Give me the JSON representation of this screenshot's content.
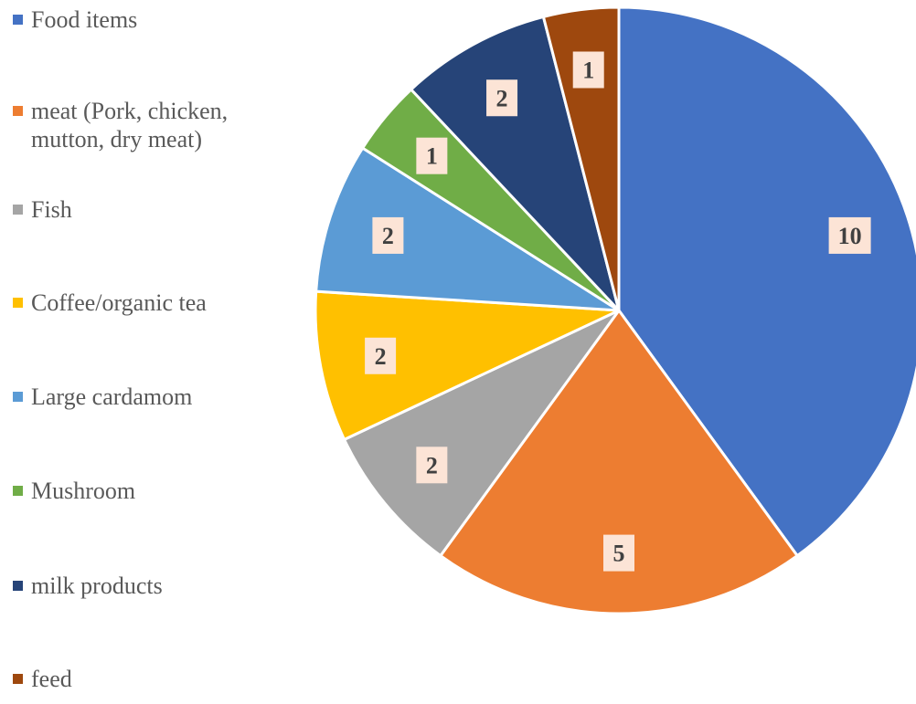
{
  "chart_data": {
    "type": "pie",
    "title": "",
    "legend_position": "left",
    "slices": [
      {
        "label": "Food items",
        "value": 10,
        "color": "#4472C4"
      },
      {
        "label": "meat (Pork, chicken, mutton, dry meat)",
        "value": 5,
        "color": "#ED7D31"
      },
      {
        "label": "Fish",
        "value": 2,
        "color": "#A5A5A5"
      },
      {
        "label": "Coffee/organic tea",
        "value": 2,
        "color": "#FFC000"
      },
      {
        "label": "Large cardamom",
        "value": 2,
        "color": "#5B9BD5"
      },
      {
        "label": "Mushroom",
        "value": 1,
        "color": "#70AD47"
      },
      {
        "label": "milk products",
        "value": 2,
        "color": "#264478"
      },
      {
        "label": "feed",
        "value": 1,
        "color": "#9E480E"
      }
    ],
    "data_label_background": "#FCE4D6",
    "data_label_color": "#404040"
  }
}
